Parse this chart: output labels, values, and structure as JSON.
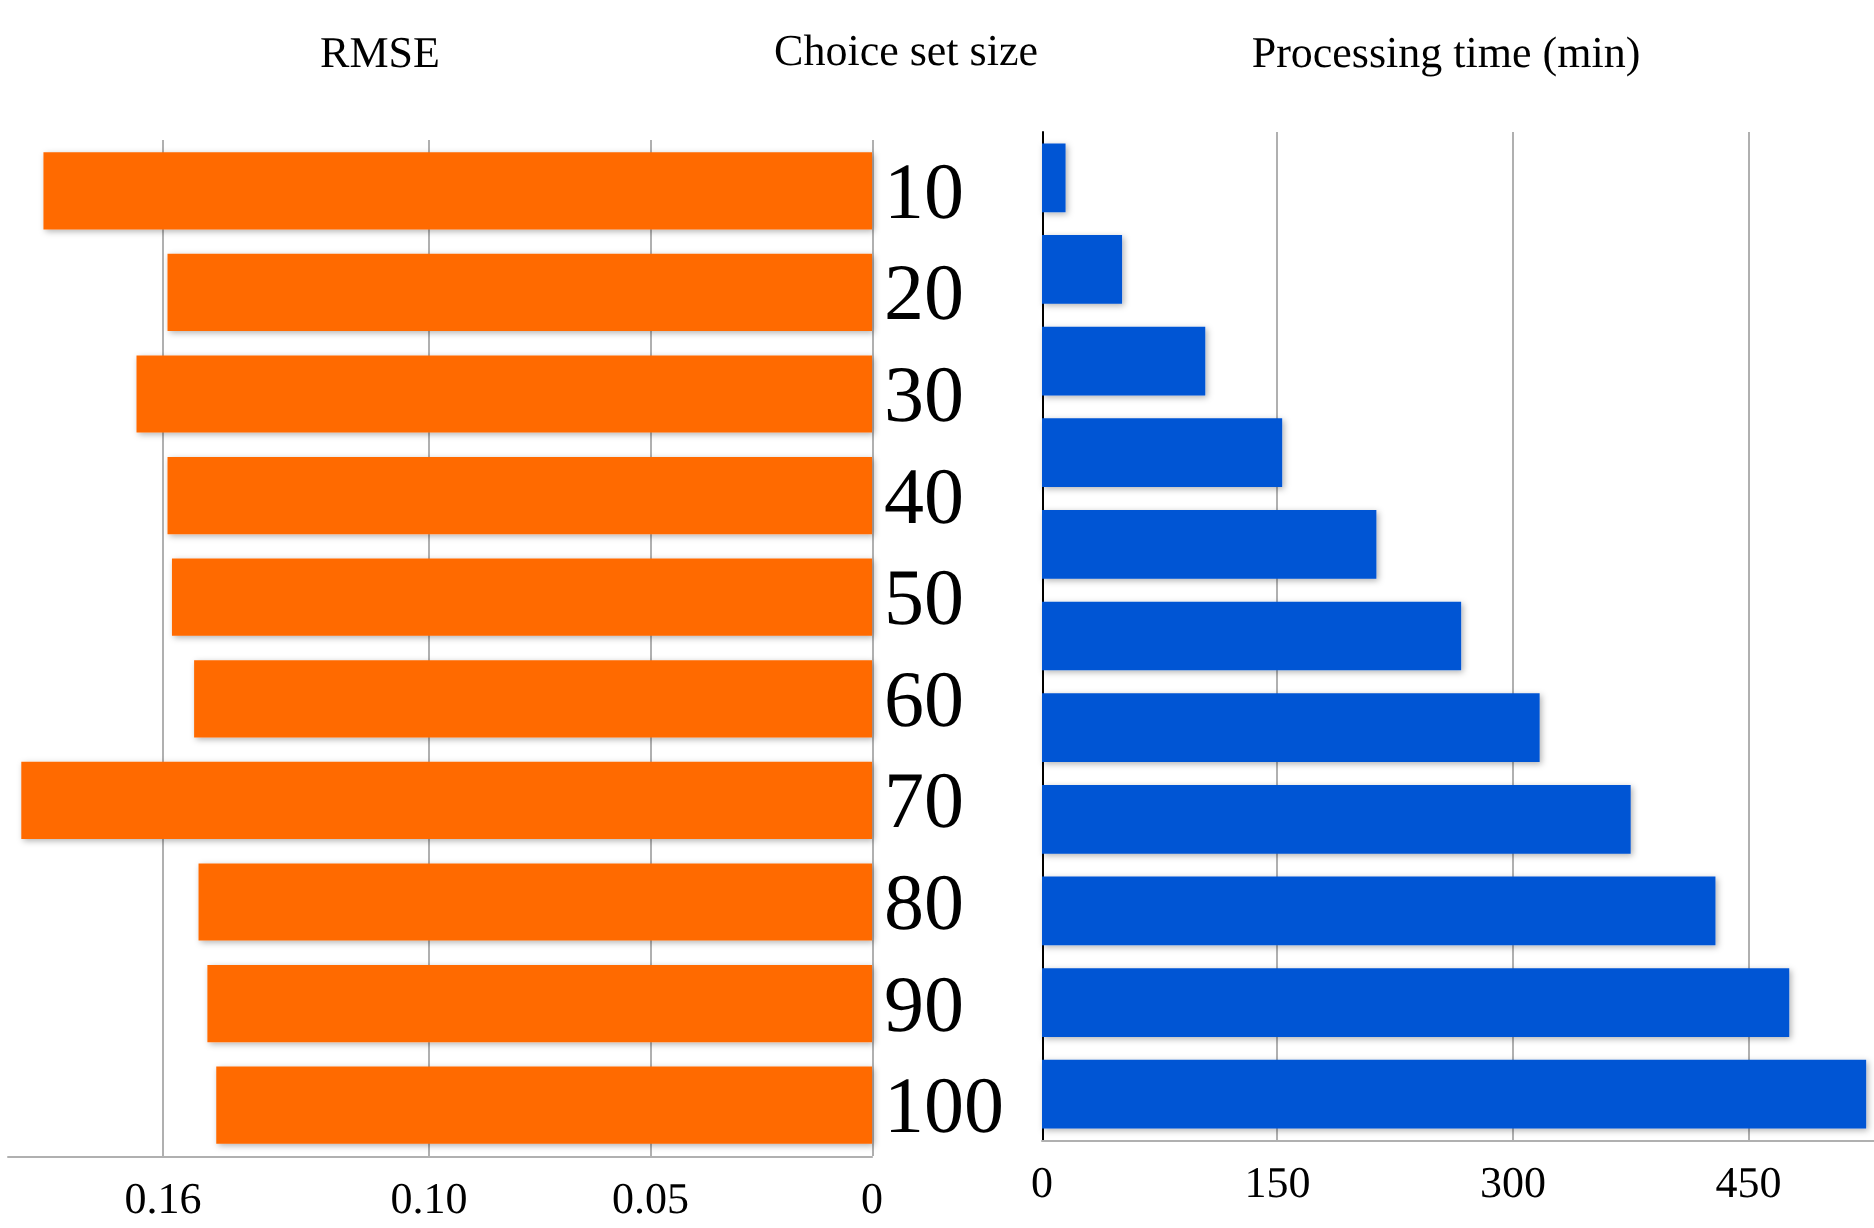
{
  "chart_data": [
    {
      "type": "bar",
      "orientation": "horizontal",
      "title": "RMSE",
      "ylabel": "Choice set size",
      "categories": [
        "10",
        "20",
        "30",
        "40",
        "50",
        "60",
        "70",
        "80",
        "90",
        "100"
      ],
      "values": [
        0.187,
        0.159,
        0.166,
        0.159,
        0.158,
        0.153,
        0.192,
        0.152,
        0.15,
        0.148
      ],
      "color": "#ff6a00",
      "xlim": [
        0.195,
        0
      ],
      "xticks": [
        0.16,
        {
          "value": 0.1,
          "label": "0.10"
        },
        0.05,
        0
      ],
      "grid": "x"
    },
    {
      "type": "bar",
      "orientation": "horizontal",
      "title": "Processing time (min)",
      "categories": [
        null,
        null,
        null,
        null,
        null,
        null,
        null,
        null,
        null,
        null,
        null
      ],
      "values": [
        15,
        51,
        104,
        153,
        213,
        267,
        317,
        375,
        429,
        476,
        525
      ],
      "color": "#0055d4",
      "xlim": [
        0,
        530
      ],
      "xticks": [
        0,
        150,
        300,
        450
      ],
      "grid": "x",
      "tick_labels": "x"
    }
  ]
}
